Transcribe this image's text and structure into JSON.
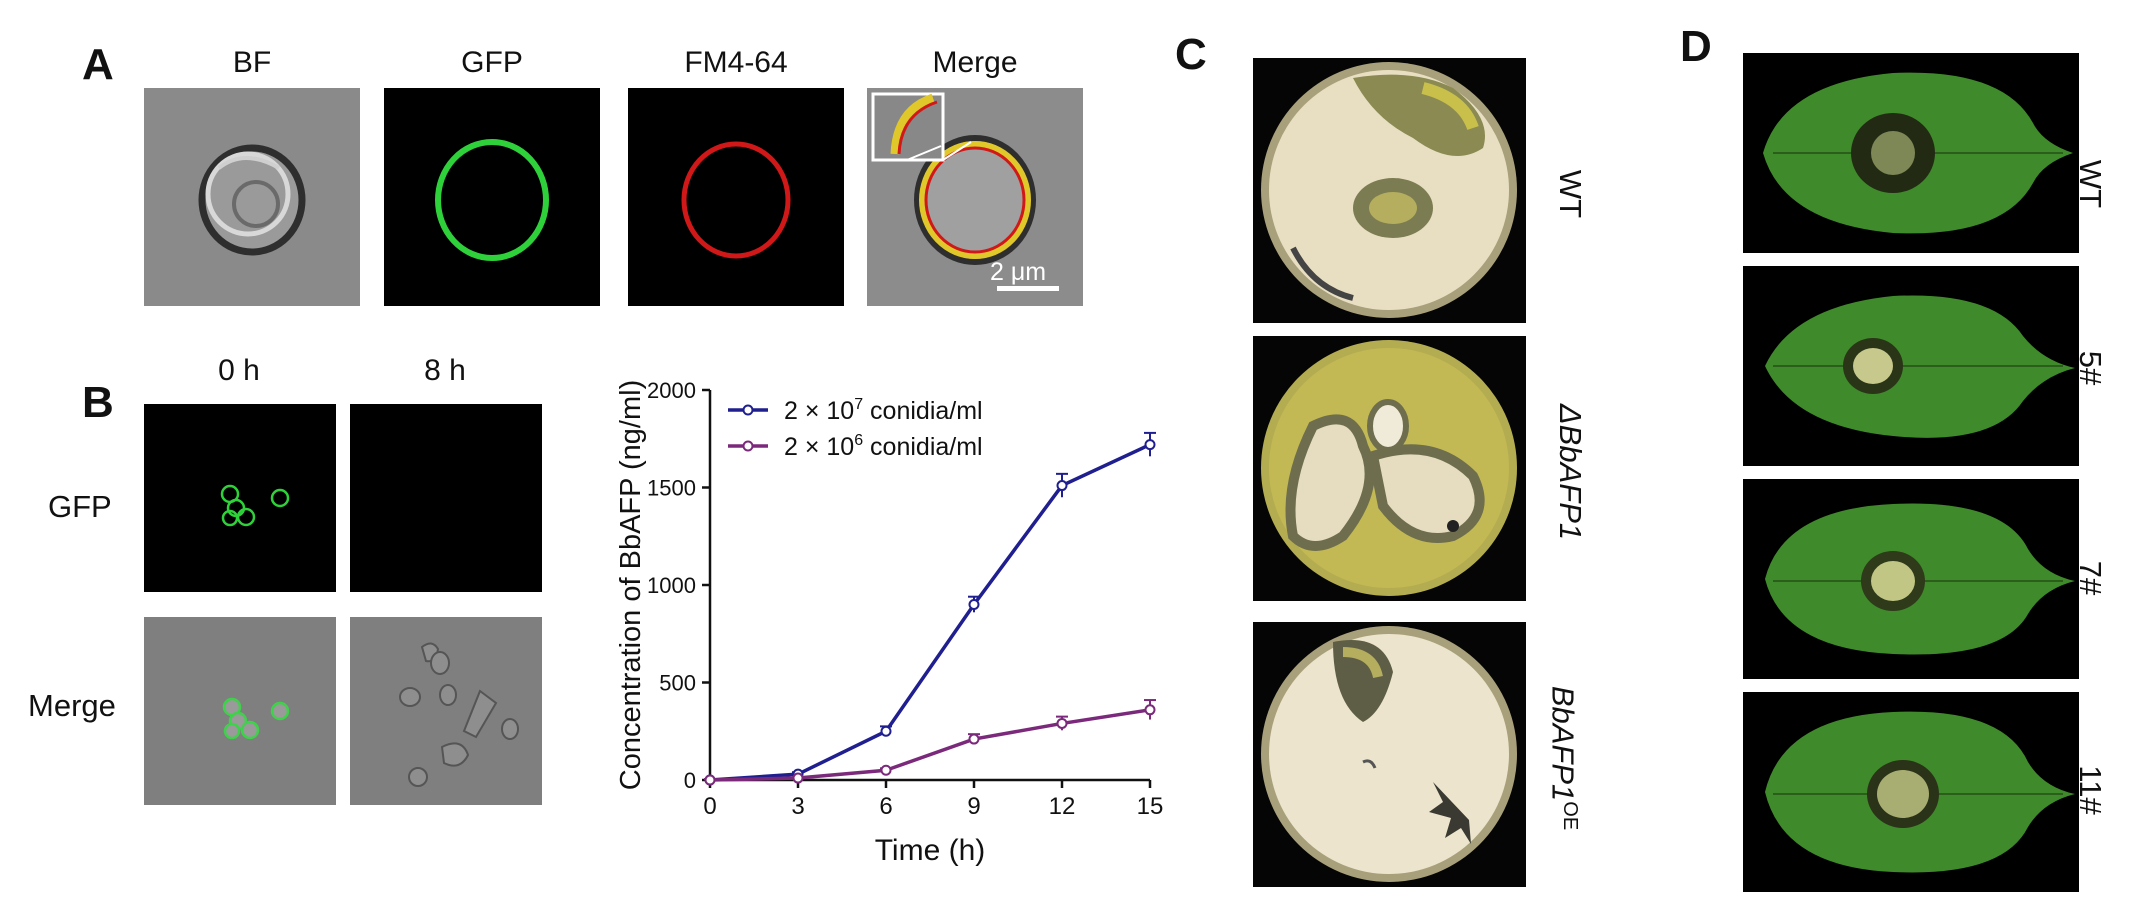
{
  "panels": {
    "A": {
      "letter": "A",
      "columns": [
        "BF",
        "GFP",
        "FM4-64",
        "Merge"
      ],
      "scale_bar": "2 μm"
    },
    "B": {
      "letter": "B",
      "columns": [
        "0 h",
        "8 h"
      ],
      "rows": [
        "GFP",
        "Merge"
      ]
    },
    "C": {
      "letter": "C",
      "labels": [
        "WT",
        "ΔBbAFP1",
        "BbAFP1"
      ],
      "oe_superscript": "OE"
    },
    "D": {
      "letter": "D",
      "labels": [
        "WT",
        "5#",
        "7#",
        "11#"
      ]
    }
  },
  "chart_data": {
    "type": "line",
    "xlabel": "Time (h)",
    "ylabel": "Concentration of BbAFP (ng/ml)",
    "x": [
      0,
      3,
      6,
      9,
      12,
      15
    ],
    "xlim": [
      0,
      15
    ],
    "ylim": [
      0,
      2000
    ],
    "xticks": [
      0,
      3,
      6,
      9,
      12,
      15
    ],
    "yticks": [
      0,
      500,
      1000,
      1500,
      2000
    ],
    "legend_position": "top-left",
    "series": [
      {
        "name": "2 × 10",
        "exponent": "7",
        "unit": " conidia/ml",
        "color": "#1f1f8f",
        "values": [
          0,
          30,
          250,
          900,
          1510,
          1720
        ],
        "errors": [
          5,
          10,
          25,
          40,
          60,
          60
        ]
      },
      {
        "name": "2 × 10",
        "exponent": "6",
        "unit": " conidia/ml",
        "color": "#7b2a7b",
        "values": [
          0,
          10,
          50,
          210,
          290,
          360
        ],
        "errors": [
          5,
          5,
          10,
          25,
          35,
          50
        ]
      }
    ]
  }
}
